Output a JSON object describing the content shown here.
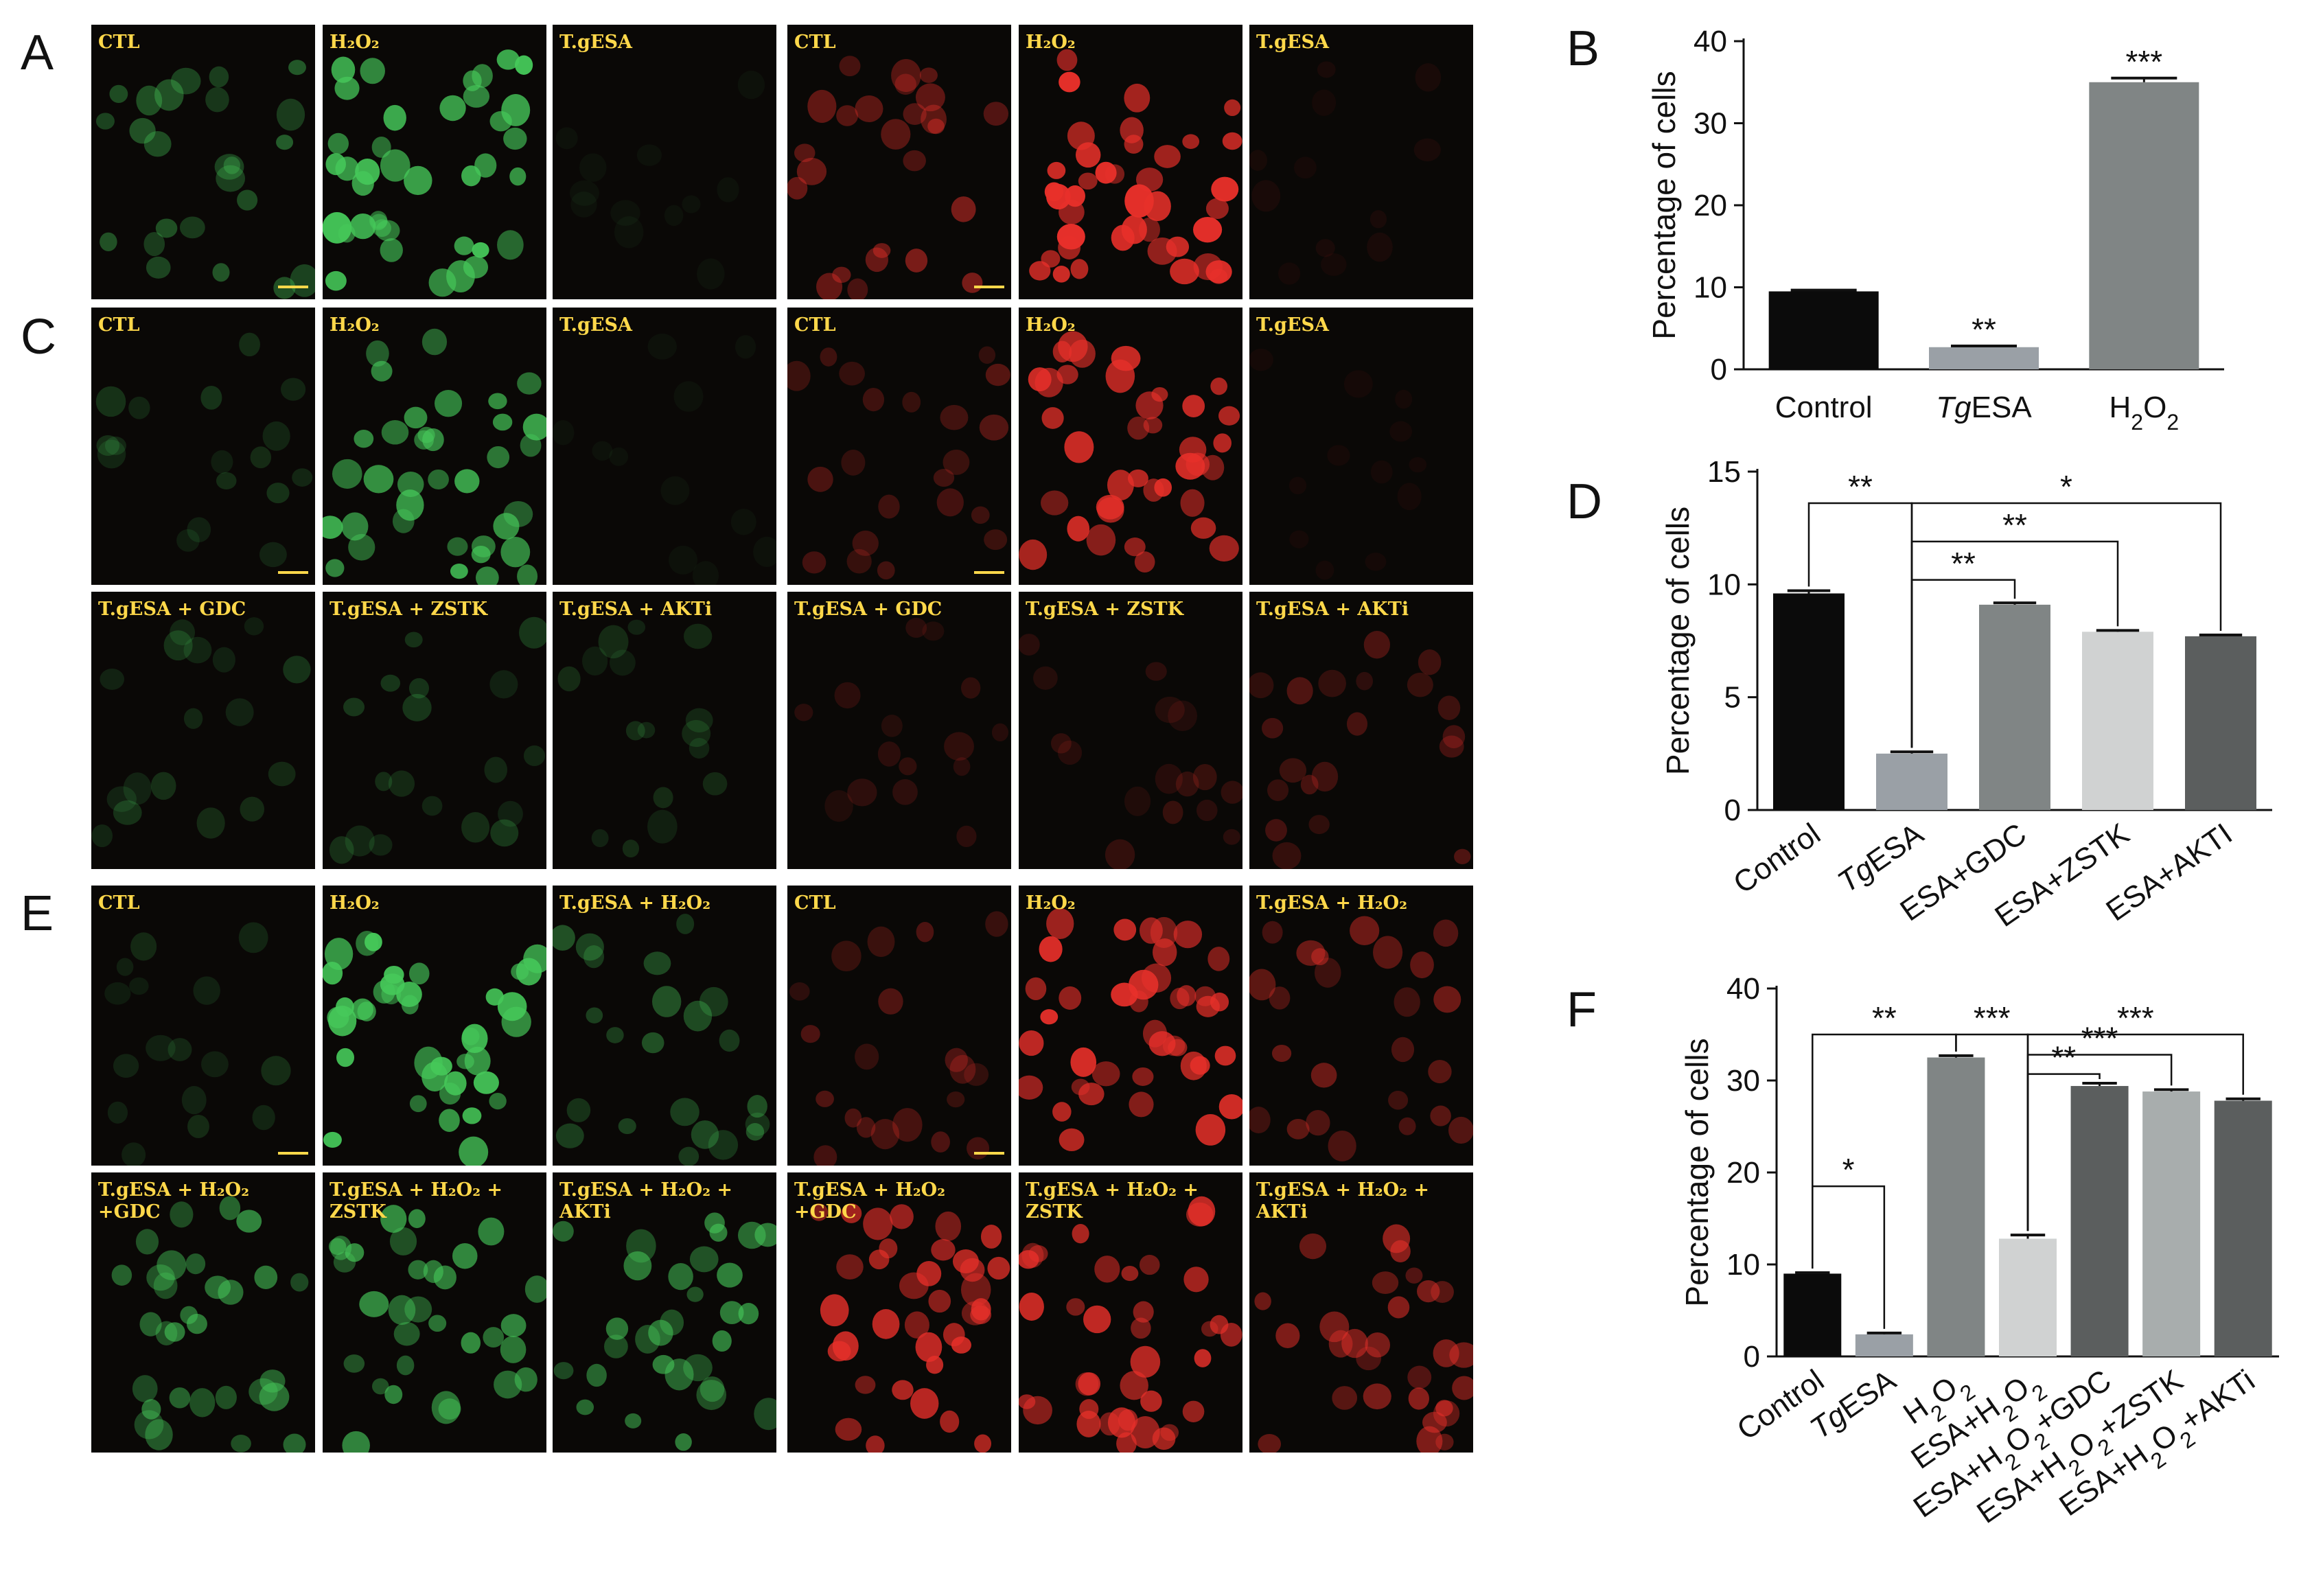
{
  "panel_letters": [
    "A",
    "B",
    "C",
    "D",
    "E",
    "F"
  ],
  "colors": {
    "green_channel": "#46c95a",
    "red_channel": "#e8302a",
    "label": "#ffd84a",
    "background": "#0a0806"
  },
  "micrographs": {
    "A_green": [
      "CTL",
      "H₂O₂",
      "T.gESA"
    ],
    "A_red": [
      "CTL",
      "H₂O₂",
      "T.gESA"
    ],
    "C_green": [
      "CTL",
      "H₂O₂",
      "T.gESA",
      "T.gESA + GDC",
      "T.gESA + ZSTK",
      "T.gESA + AKTi"
    ],
    "C_red": [
      "CTL",
      "H₂O₂",
      "T.gESA",
      "T.gESA + GDC",
      "T.gESA + ZSTK",
      "T.gESA + AKTi"
    ],
    "E_green": [
      "CTL",
      "H₂O₂",
      "T.gESA + H₂O₂",
      "T.gESA + H₂O₂\n+GDC",
      "T.gESA + H₂O₂ +\nZSTK",
      "T.gESA + H₂O₂ +\nAKTi"
    ],
    "E_red": [
      "CTL",
      "H₂O₂",
      "T.gESA + H₂O₂",
      "T.gESA + H₂O₂\n+GDC",
      "T.gESA + H₂O₂ +\nZSTK",
      "T.gESA + H₂O₂ +\nAKTi"
    ]
  },
  "chart_data": [
    {
      "id": "B",
      "type": "bar",
      "ylabel": "Percentage of cells",
      "ylim": [
        0,
        40
      ],
      "yticks": [
        0,
        10,
        20,
        30,
        40
      ],
      "categories": [
        "Control",
        "TgESA",
        "H2O2"
      ],
      "values": [
        9.5,
        2.7,
        35.0
      ],
      "errors": [
        0.15,
        0.15,
        0.5
      ],
      "colors": [
        "#0b0b0b",
        "#9aa0a6",
        "#808585"
      ],
      "bar_stars": [
        "",
        "**",
        "***"
      ]
    },
    {
      "id": "D",
      "type": "bar",
      "ylabel": "Percentage of cells",
      "ylim": [
        0,
        15
      ],
      "yticks": [
        0,
        5,
        10,
        15
      ],
      "categories": [
        "Control",
        "TgESA",
        "ESA+GDC",
        "ESA+ZSTK",
        "ESA+AKTI"
      ],
      "values": [
        9.6,
        2.5,
        9.1,
        7.9,
        7.7
      ],
      "errors": [
        0.12,
        0.08,
        0.08,
        0.06,
        0.06
      ],
      "colors": [
        "#0b0b0b",
        "#9aa0a6",
        "#808585",
        "#d0d2d2",
        "#5b5e5e"
      ],
      "brackets": [
        {
          "from": 0,
          "to": 1,
          "y": 13.6,
          "label": "**"
        },
        {
          "from": 1,
          "to": 2,
          "y": 10.2,
          "label": "**"
        },
        {
          "from": 1,
          "to": 3,
          "y": 11.9,
          "label": "**"
        },
        {
          "from": 1,
          "to": 4,
          "y": 13.6,
          "label": "*"
        }
      ]
    },
    {
      "id": "F",
      "type": "bar",
      "ylabel": "Percentage of cells",
      "ylim": [
        0,
        40
      ],
      "yticks": [
        0,
        10,
        20,
        30,
        40
      ],
      "categories": [
        "Control",
        "TgESA",
        "H2O2",
        "ESA+H2O2",
        "ESA+H2O2+GDC",
        "ESA+H2O2+ZSTK",
        "ESA+H2O2+AKTi"
      ],
      "values": [
        9.0,
        2.4,
        32.5,
        12.8,
        29.4,
        28.8,
        27.8
      ],
      "errors": [
        0.1,
        0.15,
        0.2,
        0.4,
        0.3,
        0.2,
        0.2
      ],
      "colors": [
        "#0b0b0b",
        "#9aa0a6",
        "#808585",
        "#d0d2d2",
        "#5b5e5e",
        "#a8adad",
        "#5b5e5e"
      ],
      "brackets": [
        {
          "from": 0,
          "to": 1,
          "y": 18.5,
          "label": "*"
        },
        {
          "from": 0,
          "to": 2,
          "y": 35.0,
          "label": "**"
        },
        {
          "from": 2,
          "to": 3,
          "y": 35.0,
          "label": "***"
        },
        {
          "from": 3,
          "to": 4,
          "y": 30.7,
          "label": "**"
        },
        {
          "from": 3,
          "to": 5,
          "y": 32.8,
          "label": "***"
        },
        {
          "from": 3,
          "to": 6,
          "y": 35.0,
          "label": "***"
        }
      ]
    }
  ]
}
